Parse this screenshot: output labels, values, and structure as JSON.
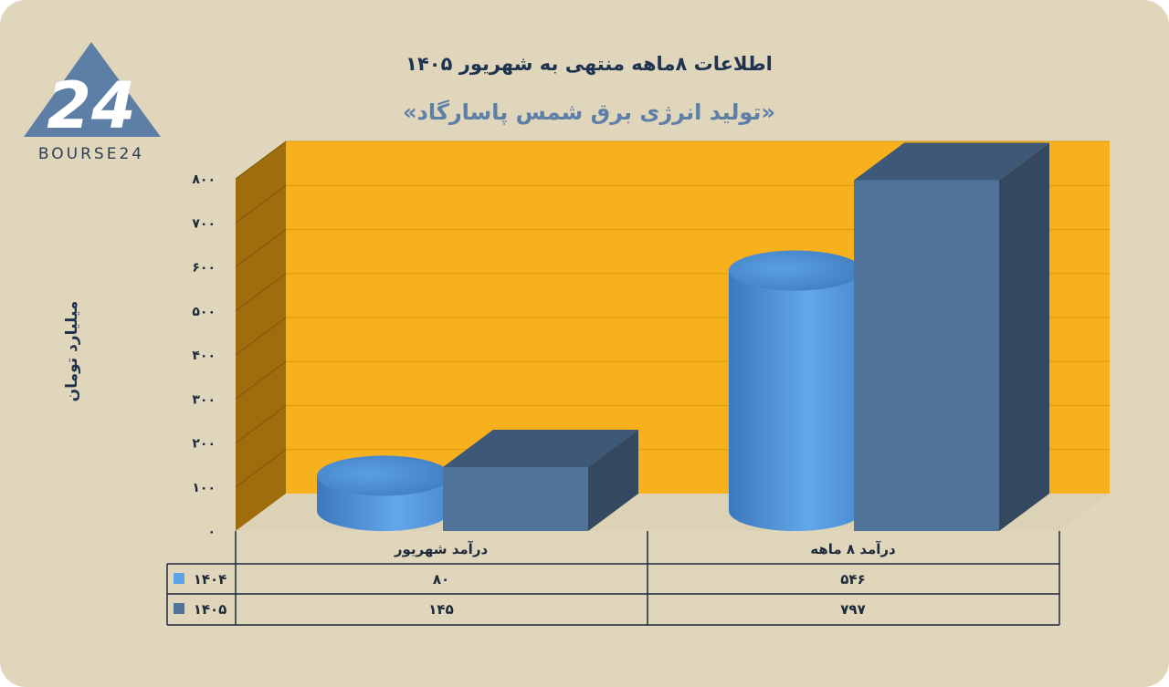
{
  "title": "اطلاعات ۸ماهه منتهی به شهریور ۱۴۰۵",
  "subtitle": "«تولید انرژی برق شمس پاسارگاد»",
  "logo": {
    "text": "BOURSE24",
    "mark": "24"
  },
  "colors": {
    "background": "#e0d6bb",
    "plot_back": "#f6b11c",
    "plot_side": "#a06d0c",
    "series_1404": "#5da3e6",
    "series_1405": "#4f7399",
    "text": "#1e2a3a"
  },
  "chart_data": {
    "type": "bar",
    "categories": [
      "درآمد ۸ ماهه",
      "درآمد  شهریور"
    ],
    "series": [
      {
        "name": "۱۴۰۴",
        "values": [
          546,
          80
        ],
        "value_labels": [
          "۵۴۶",
          "۸۰"
        ]
      },
      {
        "name": "۱۴۰۵",
        "values": [
          797,
          145
        ],
        "value_labels": [
          "۷۹۷",
          "۱۴۵"
        ]
      }
    ],
    "ylabel": "میلیارد تومان",
    "ylim": [
      0,
      800
    ],
    "yticks": [
      0,
      100,
      200,
      300,
      400,
      500,
      600,
      700,
      800
    ],
    "ytick_labels": [
      "۰",
      "۱۰۰",
      "۲۰۰",
      "۳۰۰",
      "۴۰۰",
      "۵۰۰",
      "۶۰۰",
      "۷۰۰",
      "۸۰۰"
    ],
    "grid": true,
    "legend": "data-table"
  }
}
